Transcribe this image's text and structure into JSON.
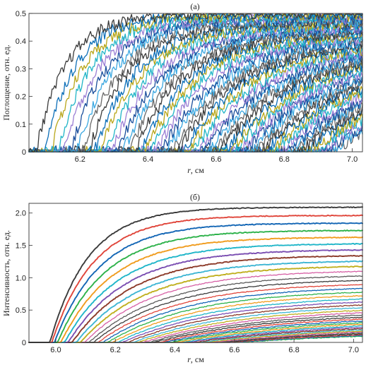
{
  "palette": [
    "#3b3b3b",
    "#0d6fb8",
    "#b8a61a",
    "#21b5c7",
    "#9b7fd4",
    "#1b4f9c",
    "#3aa7e0",
    "#6a6a6a"
  ],
  "palette_b": [
    "#3b3b3b",
    "#e0453a",
    "#1366b5",
    "#2db24a",
    "#f09c1e",
    "#20b6c9",
    "#7b4fb2",
    "#8c3b2a",
    "#3fb6d4",
    "#c0b020",
    "#d65fa5",
    "#5a5a5a"
  ],
  "chart_data": [
    {
      "type": "line",
      "title": "(а)",
      "xlabel_italic": "r",
      "xlabel_rest": ", см",
      "ylabel": "Поглощение, отн. ед.",
      "xlim": [
        6.05,
        7.03
      ],
      "ylim": [
        0,
        0.5
      ],
      "xticks": [
        6.2,
        6.4,
        6.6,
        6.8,
        7.0
      ],
      "xtick_labels": [
        "6.2",
        "6.4",
        "6.6",
        "6.8",
        "7.0"
      ],
      "yticks": [
        0,
        0.1,
        0.2,
        0.3,
        0.4,
        0.5
      ],
      "ytick_labels": [
        "0",
        "0.1",
        "0.2",
        "0.3",
        "0.4",
        "0.5"
      ],
      "series_count": 56,
      "front_start": 6.07,
      "front_end": 6.95,
      "amp_first": 0.5,
      "amp_last": 0.28,
      "width_first": 0.09,
      "width_last": 0.3,
      "noise": 0.022
    },
    {
      "type": "line",
      "title": "(б)",
      "xlabel_italic": "r",
      "xlabel_rest": ", см",
      "ylabel": "Интенсивность, отн. ед.",
      "xlim": [
        5.91,
        7.03
      ],
      "ylim": [
        0,
        2.15
      ],
      "xticks": [
        6.0,
        6.2,
        6.4,
        6.6,
        6.8,
        7.0
      ],
      "xtick_labels": [
        "6.0",
        "6.2",
        "6.4",
        "6.6",
        "6.8",
        "7.0"
      ],
      "yticks": [
        0,
        0.5,
        1.0,
        1.5,
        2.0
      ],
      "ytick_labels": [
        "0",
        "0.5",
        "1.0",
        "1.5",
        "2.0"
      ],
      "series_count": 40,
      "front_start": 5.98,
      "front_end": 6.62,
      "amp_first": 2.09,
      "amp_decay": 0.52,
      "width_first": 0.13,
      "width_last": 0.55,
      "noise": 0.006
    }
  ]
}
